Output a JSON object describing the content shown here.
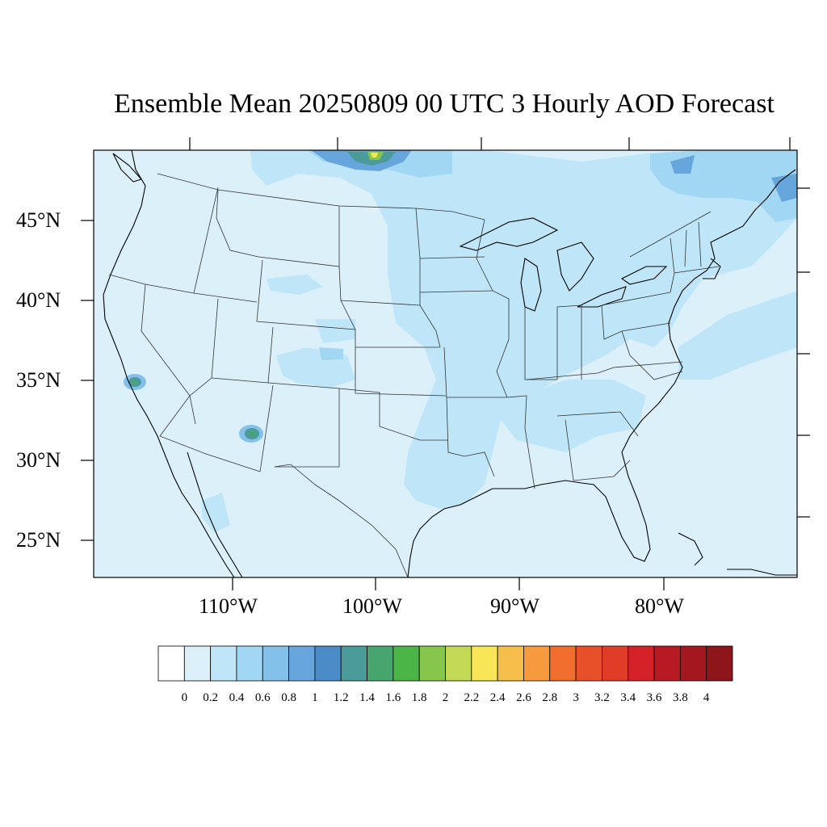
{
  "title": "Ensemble Mean 20250809 00 UTC 3 Hourly AOD Forecast",
  "map": {
    "lat_labels": [
      "45°N",
      "40°N",
      "35°N",
      "30°N",
      "25°N"
    ],
    "lon_labels": [
      "110°W",
      "100°W",
      "90°W",
      "80°W"
    ],
    "background_color": "#dcf0fa"
  },
  "colorbar": {
    "labels": [
      "0",
      "0.2",
      "0.4",
      "0.6",
      "0.8",
      "1",
      "1.2",
      "1.4",
      "1.6",
      "1.8",
      "2",
      "2.2",
      "2.4",
      "2.6",
      "2.8",
      "3",
      "3.2",
      "3.4",
      "3.6",
      "3.8",
      "4"
    ],
    "colors": [
      "#ffffff",
      "#dcf0fa",
      "#bfe6f8",
      "#a2d7f3",
      "#83c1ea",
      "#67a6dc",
      "#4a8bc8",
      "#4b9b9a",
      "#46a66d",
      "#4cb547",
      "#86c64c",
      "#c3d955",
      "#f8e558",
      "#f6be4a",
      "#f69a3d",
      "#f06d2d",
      "#e8502a",
      "#df3d28",
      "#d42128",
      "#b81a23",
      "#a5171e",
      "#8e1519"
    ]
  }
}
